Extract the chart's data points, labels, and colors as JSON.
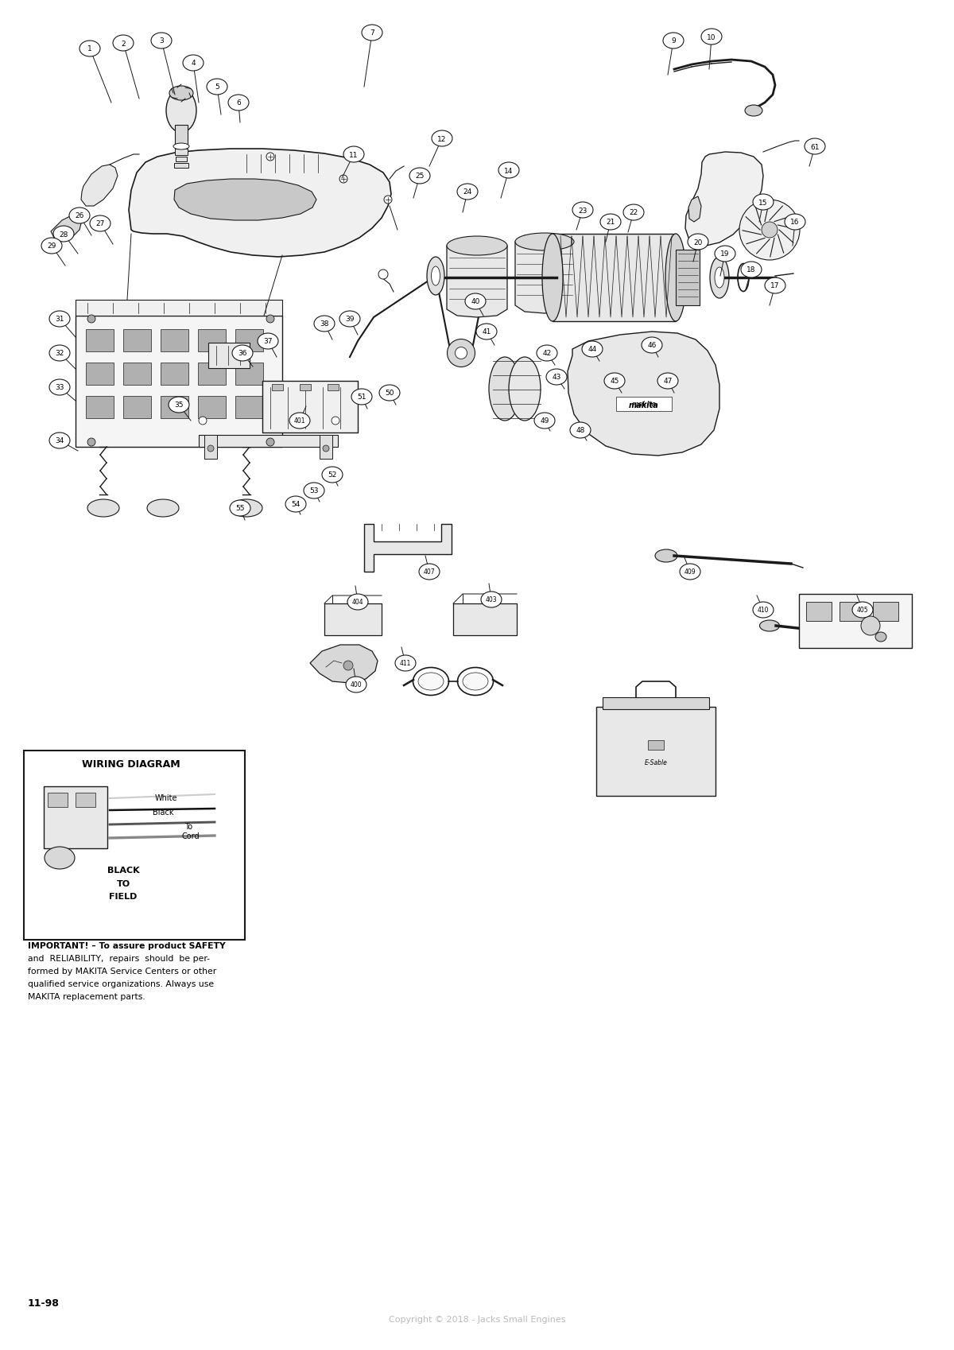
{
  "bg_color": "#ffffff",
  "line_color": "#1a1a1a",
  "fig_width": 12.0,
  "fig_height": 16.99,
  "copyright": "Copyright © 2018 - Jacks Small Engines",
  "page_code": "11-98",
  "wiring_diagram_title": "WIRING DIAGRAM",
  "important_lines": [
    "IMPORTANT! – To assure product SAFETY",
    "and  RELIABILITY,  repairs  should  be per-",
    "formed by MAKITA Service Centers or other",
    "qualified service organizations. Always use",
    "MAKITA replacement parts."
  ],
  "callouts": [
    [
      1,
      113,
      62,
      140,
      130
    ],
    [
      2,
      155,
      55,
      175,
      125
    ],
    [
      3,
      203,
      52,
      220,
      120
    ],
    [
      4,
      243,
      80,
      250,
      130
    ],
    [
      5,
      273,
      110,
      278,
      145
    ],
    [
      6,
      300,
      130,
      302,
      155
    ],
    [
      7,
      468,
      42,
      458,
      110
    ],
    [
      9,
      847,
      52,
      840,
      95
    ],
    [
      10,
      895,
      47,
      892,
      88
    ],
    [
      11,
      445,
      195,
      430,
      225
    ],
    [
      12,
      556,
      175,
      540,
      210
    ],
    [
      14,
      640,
      215,
      630,
      250
    ],
    [
      15,
      960,
      255,
      955,
      280
    ],
    [
      16,
      1000,
      280,
      997,
      310
    ],
    [
      17,
      975,
      360,
      968,
      385
    ],
    [
      18,
      945,
      340,
      938,
      365
    ],
    [
      19,
      912,
      320,
      906,
      348
    ],
    [
      20,
      878,
      305,
      872,
      330
    ],
    [
      21,
      768,
      280,
      762,
      305
    ],
    [
      22,
      797,
      268,
      790,
      293
    ],
    [
      23,
      733,
      265,
      725,
      290
    ],
    [
      24,
      588,
      242,
      582,
      268
    ],
    [
      25,
      528,
      222,
      520,
      250
    ],
    [
      26,
      100,
      272,
      115,
      297
    ],
    [
      27,
      126,
      282,
      142,
      308
    ],
    [
      28,
      80,
      295,
      98,
      320
    ],
    [
      29,
      65,
      310,
      82,
      335
    ],
    [
      31,
      75,
      402,
      95,
      425
    ],
    [
      32,
      75,
      445,
      95,
      465
    ],
    [
      33,
      75,
      488,
      95,
      505
    ],
    [
      34,
      75,
      555,
      98,
      568
    ],
    [
      35,
      225,
      510,
      240,
      530
    ],
    [
      36,
      305,
      445,
      318,
      462
    ],
    [
      37,
      337,
      430,
      348,
      450
    ],
    [
      38,
      408,
      408,
      418,
      428
    ],
    [
      39,
      440,
      402,
      450,
      422
    ],
    [
      40,
      598,
      380,
      608,
      398
    ],
    [
      41,
      612,
      418,
      622,
      435
    ],
    [
      42,
      688,
      445,
      698,
      460
    ],
    [
      43,
      700,
      475,
      710,
      490
    ],
    [
      44,
      745,
      440,
      754,
      455
    ],
    [
      45,
      773,
      480,
      782,
      495
    ],
    [
      46,
      820,
      435,
      828,
      450
    ],
    [
      47,
      840,
      480,
      848,
      495
    ],
    [
      48,
      730,
      542,
      738,
      555
    ],
    [
      49,
      685,
      530,
      692,
      543
    ],
    [
      50,
      490,
      495,
      498,
      510
    ],
    [
      51,
      455,
      500,
      462,
      515
    ],
    [
      52,
      418,
      598,
      425,
      612
    ],
    [
      53,
      395,
      618,
      402,
      632
    ],
    [
      54,
      372,
      635,
      378,
      648
    ],
    [
      55,
      302,
      640,
      308,
      655
    ],
    [
      61,
      1025,
      185,
      1018,
      210
    ],
    [
      400,
      448,
      862,
      445,
      842
    ],
    [
      401,
      377,
      530,
      385,
      512
    ],
    [
      403,
      618,
      755,
      615,
      735
    ],
    [
      404,
      450,
      758,
      447,
      738
    ],
    [
      405,
      1085,
      768,
      1078,
      750
    ],
    [
      407,
      540,
      720,
      535,
      700
    ],
    [
      409,
      868,
      720,
      860,
      700
    ],
    [
      410,
      960,
      768,
      952,
      750
    ],
    [
      411,
      510,
      835,
      505,
      815
    ]
  ]
}
